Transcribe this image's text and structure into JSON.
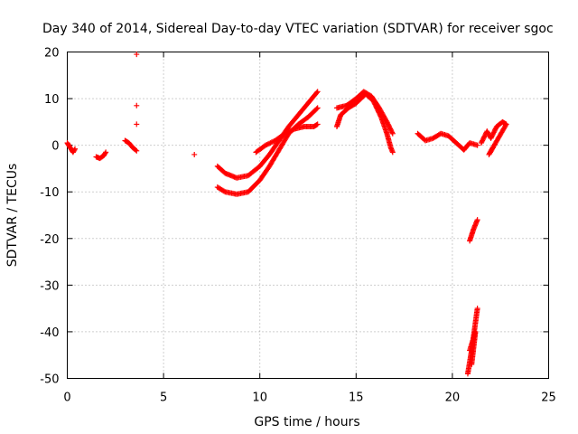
{
  "chart_data": {
    "type": "scatter",
    "title": "Day 340 of 2014, Sidereal Day-to-day VTEC variation (SDTVAR) for receiver sgoc",
    "xlabel": "GPS time / hours",
    "ylabel": "SDTVAR / TECUs",
    "xlim": [
      0,
      25
    ],
    "ylim": [
      -50,
      20
    ],
    "xticks": [
      "0",
      "5",
      "10",
      "15",
      "20",
      "25"
    ],
    "yticks": [
      "20",
      "10",
      "0",
      "-10",
      "-20",
      "-30",
      "-40",
      "-50"
    ],
    "grid": true,
    "marker": "+",
    "color": "#ff0000",
    "segments": [
      {
        "points": [
          [
            0.0,
            0.5
          ],
          [
            0.15,
            -0.5
          ],
          [
            0.3,
            -1.5
          ],
          [
            0.4,
            -0.8
          ]
        ]
      },
      {
        "points": [
          [
            1.5,
            -2.5
          ],
          [
            1.7,
            -2.8
          ],
          [
            1.9,
            -2.2
          ],
          [
            2.0,
            -1.5
          ]
        ]
      },
      {
        "points": [
          [
            3.0,
            1.0
          ],
          [
            3.2,
            0.5
          ],
          [
            3.4,
            -0.5
          ],
          [
            3.6,
            -1.2
          ]
        ]
      },
      {
        "points": [
          [
            3.6,
            19.5
          ]
        ]
      },
      {
        "points": [
          [
            3.6,
            8.5
          ]
        ]
      },
      {
        "points": [
          [
            3.6,
            4.5
          ]
        ]
      },
      {
        "points": [
          [
            6.6,
            -2.0
          ]
        ]
      },
      {
        "points": [
          [
            7.8,
            -4.5
          ],
          [
            8.2,
            -6.0
          ],
          [
            8.8,
            -7.0
          ],
          [
            9.4,
            -6.5
          ],
          [
            10.0,
            -4.5
          ],
          [
            10.5,
            -2.0
          ],
          [
            11.0,
            1.0
          ],
          [
            11.5,
            4.0
          ],
          [
            12.0,
            6.5
          ],
          [
            12.5,
            9.0
          ],
          [
            13.0,
            11.5
          ]
        ]
      },
      {
        "points": [
          [
            7.8,
            -9.0
          ],
          [
            8.2,
            -10.0
          ],
          [
            8.8,
            -10.5
          ],
          [
            9.4,
            -10.0
          ],
          [
            10.0,
            -7.5
          ],
          [
            10.5,
            -4.5
          ],
          [
            11.0,
            -1.0
          ],
          [
            11.5,
            2.5
          ],
          [
            12.0,
            4.5
          ],
          [
            12.5,
            6.0
          ],
          [
            13.0,
            8.0
          ]
        ]
      },
      {
        "points": [
          [
            9.8,
            -1.5
          ],
          [
            10.3,
            0.0
          ],
          [
            10.8,
            1.0
          ],
          [
            11.3,
            2.5
          ],
          [
            11.8,
            3.5
          ],
          [
            12.3,
            4.0
          ],
          [
            12.8,
            4.0
          ],
          [
            13.0,
            4.5
          ]
        ]
      },
      {
        "points": [
          [
            14.0,
            4.0
          ],
          [
            14.2,
            6.5
          ],
          [
            14.6,
            8.0
          ],
          [
            15.0,
            9.0
          ],
          [
            15.5,
            11.0
          ],
          [
            15.9,
            9.5
          ],
          [
            16.3,
            6.0
          ],
          [
            16.6,
            2.5
          ],
          [
            16.8,
            -0.5
          ],
          [
            16.9,
            -1.5
          ]
        ]
      },
      {
        "points": [
          [
            14.0,
            8.0
          ],
          [
            14.5,
            8.5
          ],
          [
            15.0,
            10.0
          ],
          [
            15.4,
            11.5
          ],
          [
            15.8,
            10.5
          ],
          [
            16.2,
            8.0
          ],
          [
            16.6,
            5.0
          ],
          [
            16.9,
            2.5
          ]
        ]
      },
      {
        "points": [
          [
            18.2,
            2.5
          ],
          [
            18.6,
            1.0
          ],
          [
            19.0,
            1.5
          ],
          [
            19.4,
            2.5
          ],
          [
            19.8,
            2.0
          ],
          [
            20.2,
            0.5
          ],
          [
            20.6,
            -1.0
          ],
          [
            20.9,
            0.5
          ],
          [
            21.3,
            0.0
          ]
        ]
      },
      {
        "points": [
          [
            21.5,
            0.5
          ],
          [
            21.8,
            3.0
          ],
          [
            22.0,
            1.5
          ],
          [
            22.3,
            4.0
          ],
          [
            22.6,
            5.0
          ],
          [
            22.8,
            4.5
          ],
          [
            21.9,
            -2.0
          ],
          [
            22.1,
            -0.5
          ]
        ]
      },
      {
        "points": [
          [
            20.9,
            -20.5
          ],
          [
            21.1,
            -18.0
          ],
          [
            21.3,
            -16.0
          ]
        ]
      },
      {
        "points": [
          [
            20.8,
            -49.0
          ],
          [
            21.0,
            -44.0
          ],
          [
            21.1,
            -41.0
          ],
          [
            21.3,
            -35.0
          ]
        ]
      },
      {
        "points": [
          [
            20.9,
            -44.0
          ],
          [
            21.2,
            -40.0
          ],
          [
            21.0,
            -47.0
          ]
        ]
      }
    ]
  }
}
